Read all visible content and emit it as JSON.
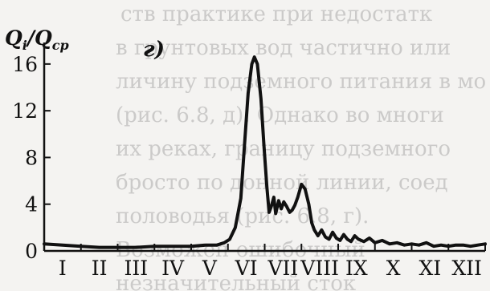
{
  "background_text": [
    "ств практике при недостатк",
    "в грунтовых вод частично или",
    "личину подземного питания в мо",
    "(рис. 6.8, д). Однако во многи",
    "их реках, границу подземного",
    "бросто по донной линии, соед",
    "половодья (рис. 6.8, г).",
    "Возможен ошибочный",
    "незначительный сток"
  ],
  "chart_data": {
    "type": "line",
    "ylabel": "Q",
    "ylabel_sub": "i",
    "ylabel_den": "/Q",
    "ylabel_den_sub": "ср",
    "panel_label": "г)",
    "ylim": [
      0,
      17.5
    ],
    "yticks": [
      0,
      4,
      8,
      12,
      16
    ],
    "xlim": [
      0,
      12
    ],
    "months": [
      "I",
      "II",
      "III",
      "IV",
      "V",
      "VI",
      "VII",
      "VIII",
      "IX",
      "X",
      "XI",
      "XII"
    ],
    "grid": false,
    "series": [
      {
        "color": "#111111",
        "x": [
          0,
          0.5,
          1,
          1.5,
          2,
          2.5,
          3,
          3.5,
          4,
          4.4,
          4.7,
          4.9,
          5.05,
          5.2,
          5.35,
          5.45,
          5.55,
          5.65,
          5.72,
          5.8,
          5.9,
          5.98,
          6.06,
          6.12,
          6.18,
          6.25,
          6.3,
          6.38,
          6.45,
          6.52,
          6.6,
          6.68,
          6.75,
          6.82,
          6.9,
          7.0,
          7.1,
          7.2,
          7.28,
          7.35,
          7.45,
          7.55,
          7.65,
          7.75,
          7.85,
          7.95,
          8.05,
          8.15,
          8.25,
          8.35,
          8.45,
          8.55,
          8.7,
          8.85,
          9.0,
          9.2,
          9.4,
          9.6,
          9.8,
          10.0,
          10.2,
          10.4,
          10.6,
          10.8,
          11.0,
          11.2,
          11.4,
          11.6,
          11.8,
          12.0
        ],
        "values": [
          0.6,
          0.5,
          0.4,
          0.3,
          0.3,
          0.3,
          0.4,
          0.4,
          0.4,
          0.5,
          0.5,
          0.7,
          1.0,
          2.0,
          4.5,
          9.0,
          13.5,
          16.0,
          16.6,
          16.0,
          13.0,
          9.0,
          5.5,
          3.3,
          3.8,
          4.6,
          3.2,
          4.3,
          3.6,
          4.2,
          3.8,
          3.3,
          3.5,
          3.9,
          4.6,
          5.7,
          5.3,
          4.0,
          2.4,
          1.8,
          1.3,
          1.8,
          1.2,
          1.0,
          1.6,
          1.1,
          0.9,
          1.4,
          1.0,
          0.8,
          1.3,
          1.0,
          0.8,
          1.1,
          0.7,
          0.9,
          0.6,
          0.7,
          0.5,
          0.6,
          0.5,
          0.7,
          0.4,
          0.5,
          0.4,
          0.5,
          0.5,
          0.4,
          0.5,
          0.6
        ]
      }
    ]
  }
}
